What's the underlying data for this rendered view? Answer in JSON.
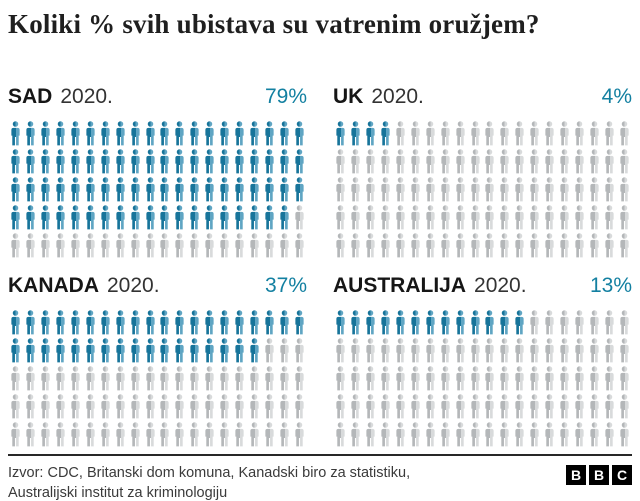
{
  "title": "Koliki % svih ubistava su vatrenim oružjem?",
  "colors": {
    "accent": "#1380a1",
    "icon_filled_dark": "#17749a",
    "icon_filled_light": "#5fa5c3",
    "icon_empty_dark": "#b4b7b9",
    "icon_empty_light": "#d8dadb",
    "rule": "#282828",
    "text": "#1f1f1f"
  },
  "chart_data": {
    "type": "pictogram",
    "title": "Koliki % svih ubistava su vatrenim oružjem?",
    "icons_per_panel": 100,
    "columns": 20,
    "rows": 5,
    "panels": [
      {
        "country": "SAD",
        "year": "2020.",
        "value": 79,
        "value_label": "79%"
      },
      {
        "country": "UK",
        "year": "2020.",
        "value": 4,
        "value_label": "4%"
      },
      {
        "country": "KANADA",
        "year": "2020.",
        "value": 37,
        "value_label": "37%"
      },
      {
        "country": "AUSTRALIJA",
        "year": "2020.",
        "value": 13,
        "value_label": "13%"
      }
    ]
  },
  "footer": {
    "source_line1": "Izvor: CDC, Britanski dom komuna, Kanadski biro za statistiku,",
    "source_line2": "Australijski institut za kriminologiju",
    "logo_letters": [
      "B",
      "B",
      "C"
    ]
  }
}
